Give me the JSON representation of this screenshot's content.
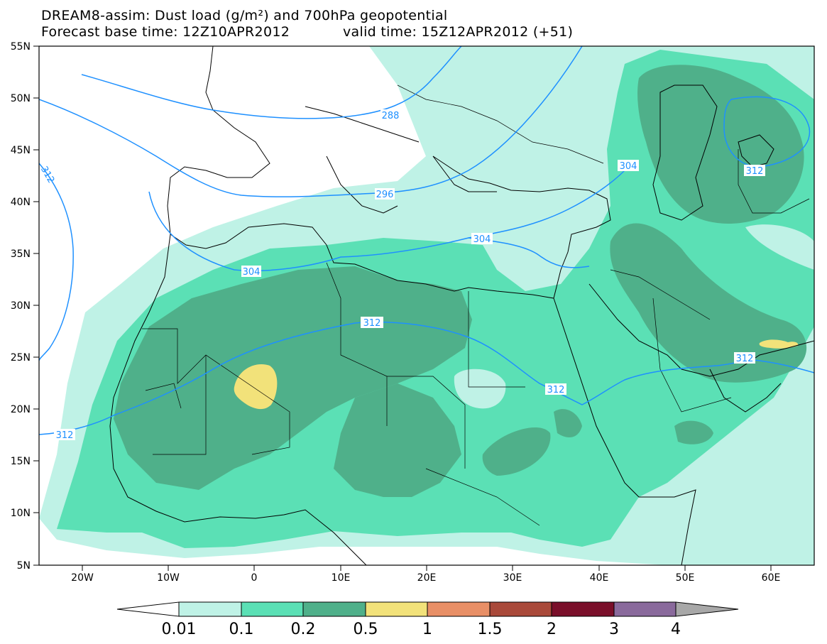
{
  "title": {
    "line1": "DREAM8-assim: Dust load (g/m²) and 700hPa geopotential",
    "forecast": "Forecast base time: 12Z10APR2012",
    "valid": "valid time: 15Z12APR2012 (+51)"
  },
  "colors": {
    "land_bg": "#ffffff",
    "coast": "#000000",
    "contour": "#1e90ff"
  },
  "axes": {
    "lon_ticks": [
      "20W",
      "10W",
      "0",
      "10E",
      "20E",
      "30E",
      "40E",
      "50E",
      "60E"
    ],
    "lat_ticks": [
      "55N",
      "50N",
      "45N",
      "40N",
      "35N",
      "30N",
      "25N",
      "20N",
      "15N",
      "10N",
      "5N"
    ]
  },
  "contour_labels": [
    "288",
    "296",
    "304",
    "304",
    "312",
    "312",
    "312",
    "312",
    "304",
    "312",
    "312"
  ],
  "colorbar": {
    "labels": [
      "0.01",
      "0.1",
      "0.2",
      "0.5",
      "1",
      "1.5",
      "2",
      "3",
      "4"
    ],
    "colors": [
      "#ffffff",
      "#bff2e6",
      "#5be0b5",
      "#4fb08a",
      "#f2e27a",
      "#e88f66",
      "#a9493a",
      "#7a0f2a",
      "#8a6a9c",
      "#a8a8a8"
    ]
  },
  "chart_data": {
    "type": "heatmap",
    "title": "DREAM8-assim: Dust load (g/m²) and 700hPa geopotential",
    "subtitle": "Forecast base time: 12Z10APR2012     valid time: 15Z12APR2012 (+51)",
    "xlim": [
      -25,
      65
    ],
    "ylim": [
      5,
      55
    ],
    "levels": [
      0.01,
      0.1,
      0.2,
      0.5,
      1,
      1.5,
      2,
      3,
      4
    ],
    "geopotential_contours": [
      288,
      296,
      304,
      312
    ],
    "dust_maxima": [
      {
        "lon": 1,
        "lat": 22.5,
        "value_range": "0.5-1"
      },
      {
        "lon": 58,
        "lat": 26,
        "value_range": "0.5-1"
      }
    ],
    "grid": false,
    "legend": "bottom"
  }
}
